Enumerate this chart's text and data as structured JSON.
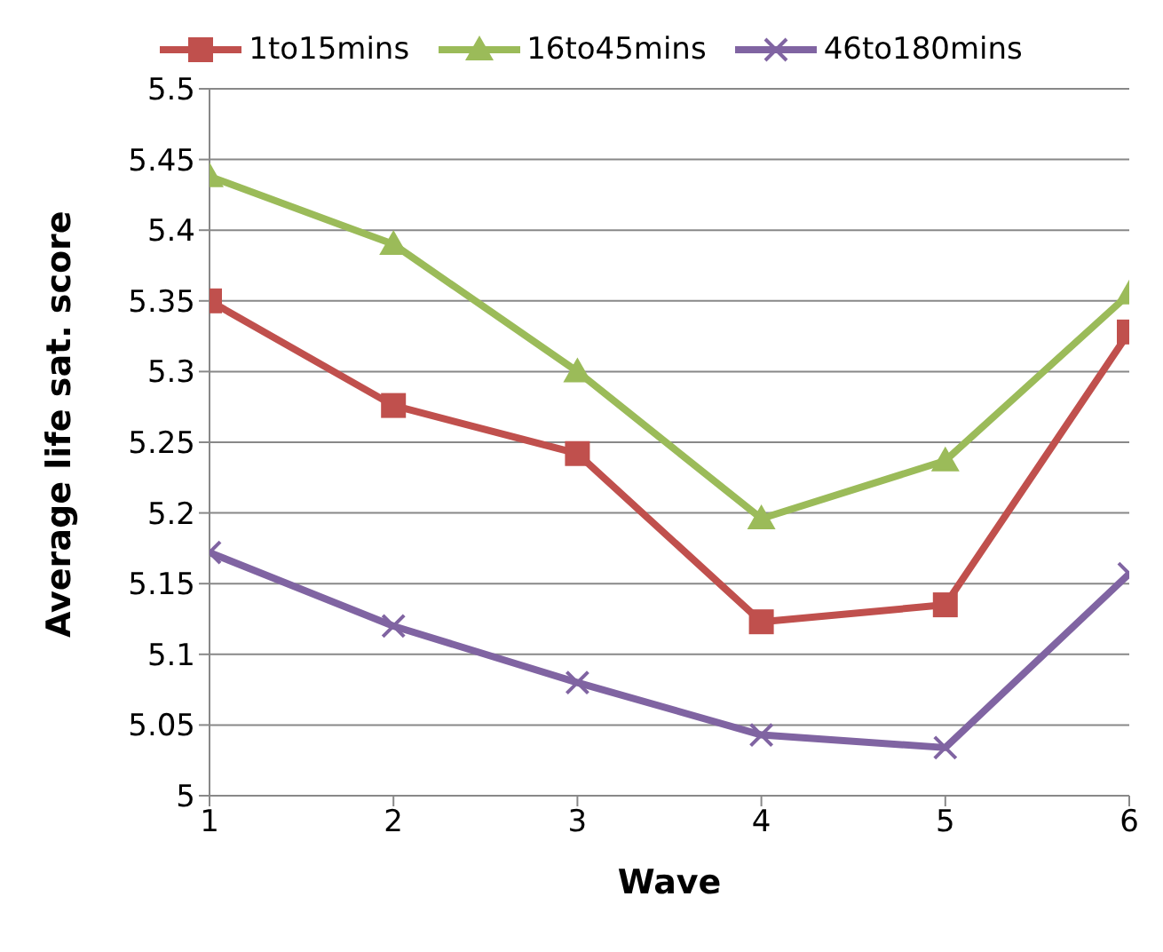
{
  "chart_data": {
    "type": "line",
    "xlabel": "Wave",
    "ylabel": "Average life sat. score",
    "x": [
      1,
      2,
      3,
      4,
      5,
      6
    ],
    "series": [
      {
        "name": "1to15mins",
        "color": "#c0504d",
        "marker": "square",
        "values": [
          5.35,
          5.276,
          5.242,
          5.123,
          5.135,
          5.328
        ]
      },
      {
        "name": "16to45mins",
        "color": "#9bbb59",
        "marker": "triangle",
        "values": [
          5.438,
          5.39,
          5.3,
          5.196,
          5.237,
          5.355
        ]
      },
      {
        "name": "46to180mins",
        "color": "#8064a2",
        "marker": "cross",
        "values": [
          5.172,
          5.12,
          5.08,
          5.043,
          5.034,
          5.157
        ]
      }
    ],
    "xlim": [
      1,
      6
    ],
    "xticks": [
      1,
      2,
      3,
      4,
      5,
      6
    ],
    "ylim": [
      5,
      5.5
    ],
    "yticks": [
      5,
      5.05,
      5.1,
      5.15,
      5.2,
      5.25,
      5.3,
      5.35,
      5.4,
      5.45,
      5.5
    ],
    "grid": "y",
    "legend": "top",
    "line_style": "solid"
  }
}
